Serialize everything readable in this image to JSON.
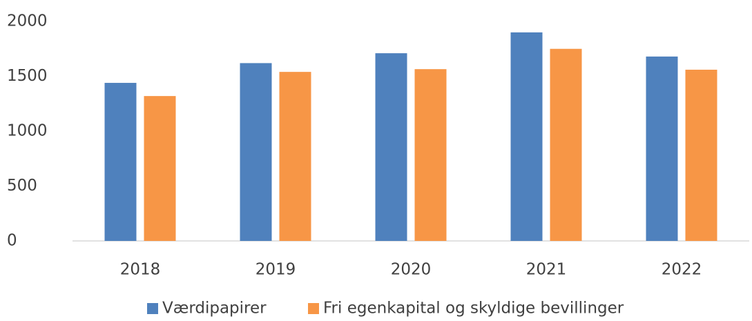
{
  "chart_data": {
    "type": "bar",
    "categories": [
      "2018",
      "2019",
      "2020",
      "2021",
      "2022"
    ],
    "series": [
      {
        "name": "Værdipapirer",
        "color": "#4f81bd",
        "values": [
          1440,
          1620,
          1710,
          1900,
          1680
        ]
      },
      {
        "name": "Fri egenkapital og skyldige bevillinger",
        "color": "#f79646",
        "values": [
          1320,
          1540,
          1565,
          1750,
          1560
        ]
      }
    ],
    "ylim": [
      0,
      2000
    ],
    "yticks": [
      0,
      500,
      1000,
      1500,
      2000
    ],
    "grid": false,
    "legend": "bottom"
  }
}
